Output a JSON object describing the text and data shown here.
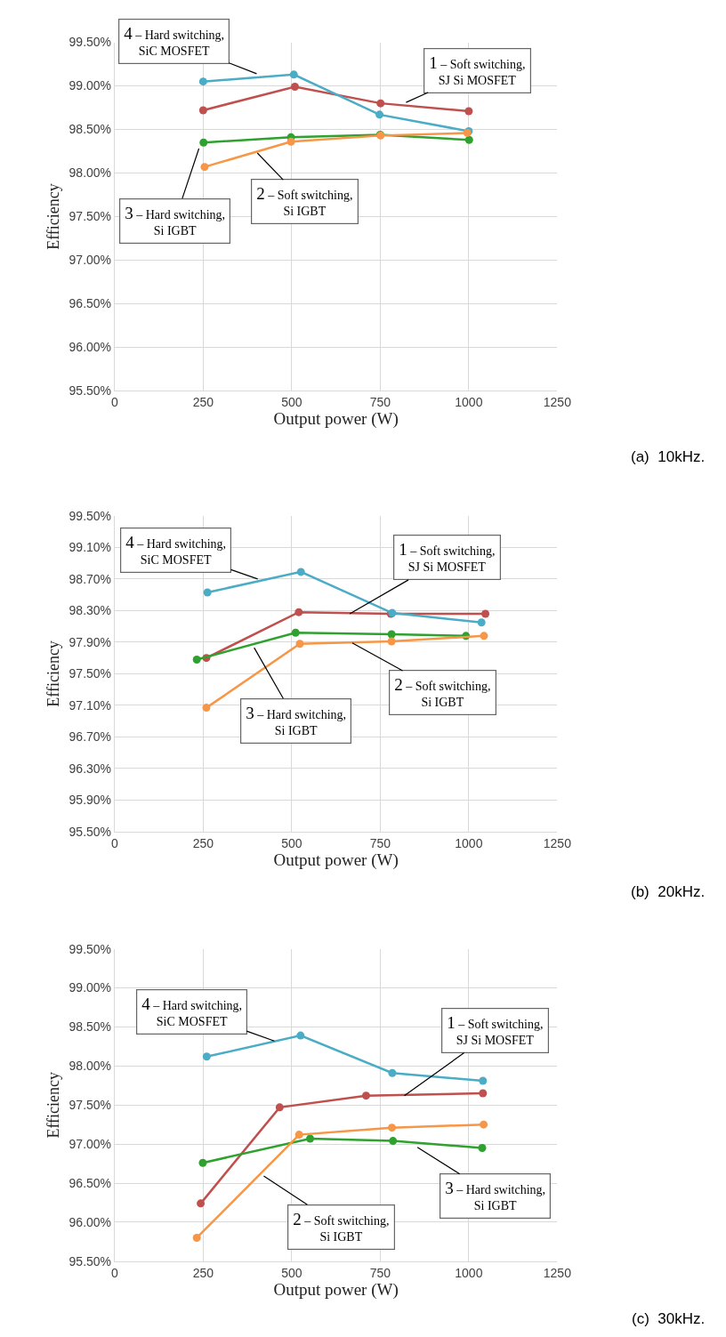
{
  "chart_data": [
    {
      "type": "line",
      "xlabel": "Output power (W)",
      "ylabel": "Efficiency",
      "xlim": [
        0,
        1250
      ],
      "xticks": [
        0,
        250,
        500,
        750,
        1000,
        1250
      ],
      "ylim": [
        95.5,
        99.5
      ],
      "yticks": [
        {
          "value": 95.5,
          "label": "95.50%"
        },
        {
          "value": 96.0,
          "label": "96.00%"
        },
        {
          "value": 96.5,
          "label": "96.50%"
        },
        {
          "value": 97.0,
          "label": "97.00%"
        },
        {
          "value": 97.5,
          "label": "97.50%"
        },
        {
          "value": 98.0,
          "label": "98.00%"
        },
        {
          "value": 98.5,
          "label": "98.50%"
        },
        {
          "value": 99.0,
          "label": "99.00%"
        },
        {
          "value": 99.5,
          "label": "99.50%"
        }
      ],
      "grid": true,
      "marker": "circle",
      "line_style": "solid",
      "series": [
        {
          "color": "#c0504d",
          "x": [
            250,
            509,
            751,
            1000
          ],
          "values": [
            98.72,
            98.99,
            98.8,
            98.71
          ]
        },
        {
          "color": "#2ea12e",
          "x": [
            251,
            498,
            750,
            1001
          ],
          "values": [
            98.35,
            98.41,
            98.44,
            98.38
          ]
        },
        {
          "color": "#4bacc6",
          "x": [
            250,
            506,
            748,
            1000
          ],
          "values": [
            99.05,
            99.13,
            98.67,
            98.48
          ]
        },
        {
          "color": "#f79646",
          "x": [
            254,
            498,
            751,
            996
          ],
          "values": [
            98.07,
            98.36,
            98.43,
            98.46
          ]
        }
      ],
      "annotations": [
        {
          "text": "4 – Hard switching,\nSiC MOSFET",
          "x": 401,
          "y": 99.14
        },
        {
          "text": "1 – Soft switching,\nSJ Si MOSFET",
          "x": 823,
          "y": 98.81
        },
        {
          "text": "3 – Hard switching,\nSi IGBT",
          "x": 238,
          "y": 98.28
        },
        {
          "text": "2 – Soft switching,\nSi IGBT",
          "x": 403,
          "y": 98.23
        },
        "(a)  10kHz."
      ]
    },
    {
      "type": "line",
      "xlabel": "Output power (W)",
      "ylabel": "Efficiency",
      "xlim": [
        0,
        1250
      ],
      "xticks": [
        0,
        250,
        500,
        750,
        1000,
        1250
      ],
      "ylim": [
        95.5,
        99.5
      ],
      "yticks": [
        {
          "value": 95.5,
          "label": "95.50%"
        },
        {
          "value": 95.9,
          "label": "95.90%"
        },
        {
          "value": 96.3,
          "label": "96.30%"
        },
        {
          "value": 96.7,
          "label": "96.70%"
        },
        {
          "value": 97.1,
          "label": "97.10%"
        },
        {
          "value": 97.5,
          "label": "97.50%"
        },
        {
          "value": 97.9,
          "label": "97.90%"
        },
        {
          "value": 98.3,
          "label": "98.30%"
        },
        {
          "value": 98.7,
          "label": "98.70%"
        },
        {
          "value": 99.1,
          "label": "99.10%"
        },
        {
          "value": 99.5,
          "label": "99.50%"
        }
      ],
      "grid": true,
      "marker": "circle",
      "line_style": "solid",
      "series": [
        {
          "color": "#c0504d",
          "x": [
            259,
            520,
            780,
            1047
          ],
          "values": [
            97.7,
            98.28,
            98.26,
            98.26
          ]
        },
        {
          "color": "#2ea12e",
          "x": [
            232,
            511,
            782,
            992
          ],
          "values": [
            97.68,
            98.02,
            98.0,
            97.98
          ]
        },
        {
          "color": "#4bacc6",
          "x": [
            262,
            526,
            784,
            1036
          ],
          "values": [
            98.53,
            98.79,
            98.27,
            98.15
          ]
        },
        {
          "color": "#f79646",
          "x": [
            259,
            523,
            782,
            1043
          ],
          "values": [
            97.07,
            97.88,
            97.91,
            97.98
          ]
        }
      ],
      "annotations": [
        {
          "text": "4 – Hard switching,\nSiC MOSFET",
          "x": 404,
          "y": 98.7
        },
        {
          "text": "1 – Soft switching,\nSJ Si MOSFET",
          "x": 664,
          "y": 98.26
        },
        {
          "text": "3 – Hard switching,\nSi IGBT",
          "x": 394,
          "y": 97.83
        },
        {
          "text": "2 – Soft switching,\nSi IGBT",
          "x": 671,
          "y": 97.89
        },
        "(b)  20kHz."
      ]
    },
    {
      "type": "line",
      "xlabel": "Output power (W)",
      "ylabel": "Efficiency",
      "xlim": [
        0,
        1250
      ],
      "xticks": [
        0,
        250,
        500,
        750,
        1000,
        1250
      ],
      "ylim": [
        95.5,
        99.5
      ],
      "yticks": [
        {
          "value": 95.5,
          "label": "95.50%"
        },
        {
          "value": 96.0,
          "label": "96.00%"
        },
        {
          "value": 96.5,
          "label": "96.50%"
        },
        {
          "value": 97.0,
          "label": "97.00%"
        },
        {
          "value": 97.5,
          "label": "97.50%"
        },
        {
          "value": 98.0,
          "label": "98.00%"
        },
        {
          "value": 98.5,
          "label": "98.50%"
        },
        {
          "value": 99.0,
          "label": "99.00%"
        },
        {
          "value": 99.5,
          "label": "99.50%"
        }
      ],
      "grid": true,
      "marker": "circle",
      "line_style": "solid",
      "series": [
        {
          "color": "#c0504d",
          "x": [
            243,
            466,
            710,
            1040
          ],
          "values": [
            96.24,
            97.47,
            97.62,
            97.65
          ]
        },
        {
          "color": "#2ea12e",
          "x": [
            249,
            552,
            786,
            1038
          ],
          "values": [
            96.76,
            97.07,
            97.04,
            96.95
          ]
        },
        {
          "color": "#4bacc6",
          "x": [
            260,
            525,
            784,
            1040
          ],
          "values": [
            98.12,
            98.39,
            97.91,
            97.81
          ]
        },
        {
          "color": "#f79646",
          "x": [
            232,
            521,
            783,
            1042
          ],
          "values": [
            95.8,
            97.12,
            97.21,
            97.25
          ]
        }
      ],
      "annotations": [
        {
          "text": "4 – Hard switching,\nSiC MOSFET",
          "x": 451,
          "y": 98.32
        },
        {
          "text": "1 – Soft switching,\nSJ Si MOSFET",
          "x": 818,
          "y": 97.62
        },
        {
          "text": "3 – Hard switching,\nSi IGBT",
          "x": 855,
          "y": 96.96
        },
        {
          "text": "2 – Soft switching,\nSi IGBT",
          "x": 421,
          "y": 96.59
        },
        "(c)  30kHz."
      ]
    }
  ]
}
